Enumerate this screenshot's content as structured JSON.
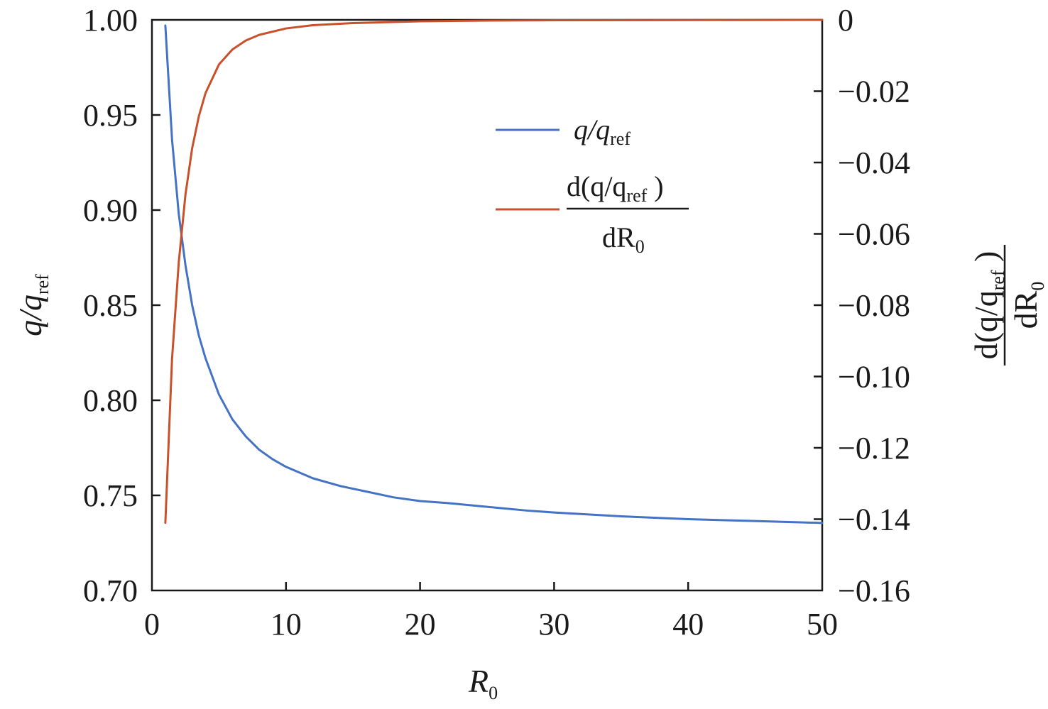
{
  "chart_data": {
    "type": "line",
    "x_axis": {
      "label": "R",
      "label_sub": "0",
      "range": [
        0,
        50
      ],
      "ticks": [
        "0",
        "10",
        "20",
        "30",
        "40",
        "50"
      ]
    },
    "y_left": {
      "label": "q/q",
      "label_sub": "ref",
      "range": [
        0.7,
        1.0
      ],
      "ticks": [
        "0.70",
        "0.75",
        "0.80",
        "0.85",
        "0.90",
        "0.95",
        "1.00"
      ]
    },
    "y_right": {
      "label_num": "d(q/q",
      "label_num_sub": "ref",
      "label_num_close": " )",
      "label_den": "dR",
      "label_den_sub": "0",
      "range": [
        -0.16,
        0
      ],
      "ticks": [
        "−0.16",
        "−0.14",
        "−0.12",
        "−0.10",
        "−0.08",
        "−0.06",
        "−0.04",
        "−0.02",
        "0"
      ]
    },
    "legend": {
      "placement": "upper-center",
      "entry1": {
        "text": "q/q",
        "sub": "ref"
      },
      "entry2": {
        "num": "d(q/q",
        "num_sub": "ref",
        "num_close": " )",
        "den": "dR",
        "den_sub": "0"
      }
    },
    "series": [
      {
        "color": "#4472c4",
        "axis": "left",
        "x": [
          1,
          1.5,
          2,
          2.5,
          3,
          3.5,
          4,
          5,
          6,
          7,
          8,
          9,
          10,
          12,
          14,
          16,
          18,
          20,
          22,
          25,
          28,
          30,
          35,
          40,
          45,
          50
        ],
        "y": [
          0.997,
          0.937,
          0.898,
          0.871,
          0.85,
          0.834,
          0.822,
          0.803,
          0.79,
          0.781,
          0.774,
          0.769,
          0.765,
          0.759,
          0.755,
          0.752,
          0.749,
          0.747,
          0.746,
          0.744,
          0.742,
          0.741,
          0.739,
          0.7375,
          0.7365,
          0.7355
        ]
      },
      {
        "color": "#c8502a",
        "axis": "right",
        "x": [
          1,
          1.5,
          2,
          2.5,
          3,
          3.5,
          4,
          5,
          6,
          7,
          8,
          10,
          12,
          15,
          20,
          25,
          30,
          40,
          50
        ],
        "y": [
          -0.141,
          -0.095,
          -0.068,
          -0.049,
          -0.036,
          -0.027,
          -0.0205,
          -0.0125,
          -0.0083,
          -0.0058,
          -0.0042,
          -0.0024,
          -0.0015,
          -0.0009,
          -0.0004,
          -0.0002,
          -0.0001,
          -5e-05,
          0
        ]
      }
    ]
  }
}
